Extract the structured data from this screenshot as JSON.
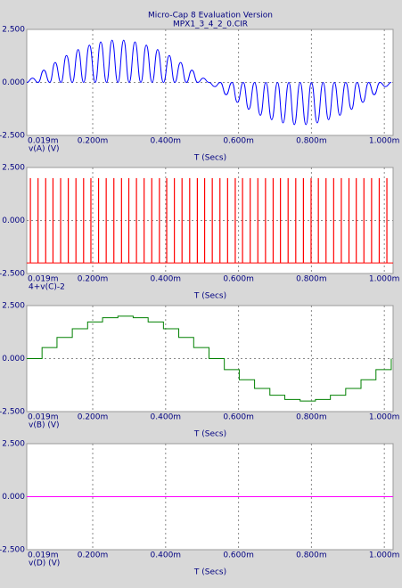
{
  "chart_data": [
    {
      "type": "line",
      "title": "Micro-Cap 8 Evaluation Version",
      "subtitle": "MPX1_3_4_2_0.CIR",
      "x_label": "T (Secs)",
      "y_label": "v(A) (V)",
      "xlim": [
        0.019,
        1.024
      ],
      "ylim": [
        -2.5,
        2.5
      ],
      "xticks": [
        {
          "value": 0.019,
          "label": "0.019m"
        },
        {
          "value": 0.2,
          "label": "0.200m"
        },
        {
          "value": 0.4,
          "label": "0.400m"
        },
        {
          "value": 0.6,
          "label": "0.600m"
        },
        {
          "value": 0.8,
          "label": "0.800m"
        },
        {
          "value": 1.0,
          "label": "1.000m"
        }
      ],
      "yticks": [
        {
          "value": 2.5,
          "label": "2.500"
        },
        {
          "value": 0,
          "label": "0.000"
        },
        {
          "value": -2.5,
          "label": "-2.500"
        }
      ],
      "grid": true,
      "series": [
        {
          "color": "#0000ff",
          "x": [
            0.019,
            0.035,
            0.05,
            0.066,
            0.082,
            0.097,
            0.113,
            0.128,
            0.144,
            0.16,
            0.175,
            0.191,
            0.207,
            0.222,
            0.238,
            0.253,
            0.269,
            0.285,
            0.3,
            0.316,
            0.332,
            0.347,
            0.363,
            0.378,
            0.394,
            0.41,
            0.425,
            0.441,
            0.457,
            0.472,
            0.488,
            0.503,
            0.519,
            0.535,
            0.55,
            0.566,
            0.582,
            0.597,
            0.613,
            0.628,
            0.644,
            0.66,
            0.675,
            0.691,
            0.707,
            0.722,
            0.738,
            0.753,
            0.769,
            0.785,
            0.8,
            0.816,
            0.832,
            0.847,
            0.863,
            0.878,
            0.894,
            0.91,
            0.925,
            0.941,
            0.957,
            0.972,
            0.988,
            1.003,
            1.019
          ],
          "values": [
            0,
            0.2,
            0,
            0.58,
            0,
            0.94,
            0,
            1.27,
            0,
            1.55,
            0,
            1.76,
            0,
            1.91,
            0,
            1.99,
            0,
            1.99,
            0,
            1.91,
            0,
            1.76,
            0,
            1.55,
            0,
            1.27,
            0,
            0.94,
            0,
            0.58,
            0,
            0.2,
            0,
            -0.2,
            0,
            -0.58,
            0,
            -0.94,
            0,
            -1.27,
            0,
            -1.55,
            0,
            -1.76,
            0,
            -1.91,
            0,
            -1.99,
            0,
            -1.99,
            0,
            -1.91,
            0,
            -1.76,
            0,
            -1.55,
            0,
            -1.27,
            0,
            -0.94,
            0,
            -0.58,
            0,
            -0.2,
            0
          ]
        }
      ]
    },
    {
      "type": "pulse",
      "x_label": "T (Secs)",
      "y_label": "4+v(C)-2",
      "xlim": [
        0.019,
        1.024
      ],
      "ylim": [
        -2.5,
        2.5
      ],
      "xticks": [
        {
          "value": 0.019,
          "label": "0.019m"
        },
        {
          "value": 0.2,
          "label": "0.200m"
        },
        {
          "value": 0.4,
          "label": "0.400m"
        },
        {
          "value": 0.6,
          "label": "0.600m"
        },
        {
          "value": 0.8,
          "label": "0.800m"
        },
        {
          "value": 1.0,
          "label": "1.000m"
        }
      ],
      "yticks": [
        {
          "value": 2.5,
          "label": "2.500"
        },
        {
          "value": 0,
          "label": "0.000"
        },
        {
          "value": -2.5,
          "label": "-2.500"
        }
      ],
      "grid": true,
      "series": [
        {
          "color": "#ff0000",
          "baseline": -2,
          "x": [
            0.029,
            0.05,
            0.071,
            0.091,
            0.112,
            0.133,
            0.154,
            0.175,
            0.195,
            0.216,
            0.237,
            0.258,
            0.279,
            0.299,
            0.32,
            0.341,
            0.362,
            0.383,
            0.403,
            0.424,
            0.445,
            0.466,
            0.487,
            0.507,
            0.528,
            0.549,
            0.57,
            0.591,
            0.611,
            0.632,
            0.653,
            0.674,
            0.695,
            0.715,
            0.736,
            0.757,
            0.778,
            0.799,
            0.819,
            0.84,
            0.861,
            0.882,
            0.903,
            0.923,
            0.944,
            0.965,
            0.986,
            1.007
          ],
          "values": [
            2,
            2,
            2,
            2,
            2,
            2,
            2,
            2,
            2,
            2,
            2,
            2,
            2,
            2,
            2,
            2,
            2,
            2,
            2,
            2,
            2,
            2,
            2,
            2,
            2,
            2,
            2,
            2,
            2,
            2,
            2,
            2,
            2,
            2,
            2,
            2,
            2,
            2,
            2,
            2,
            2,
            2,
            2,
            2,
            2,
            2,
            2,
            2
          ]
        }
      ]
    },
    {
      "type": "step",
      "x_label": "T (Secs)",
      "y_label": "v(B) (V)",
      "xlim": [
        0.019,
        1.024
      ],
      "ylim": [
        -2.5,
        2.5
      ],
      "xticks": [
        {
          "value": 0.019,
          "label": "0.019m"
        },
        {
          "value": 0.2,
          "label": "0.200m"
        },
        {
          "value": 0.4,
          "label": "0.400m"
        },
        {
          "value": 0.6,
          "label": "0.600m"
        },
        {
          "value": 0.8,
          "label": "0.800m"
        },
        {
          "value": 1.0,
          "label": "1.000m"
        }
      ],
      "yticks": [
        {
          "value": 2.5,
          "label": "2.500"
        },
        {
          "value": 0,
          "label": "0.000"
        },
        {
          "value": -2.5,
          "label": "-2.500"
        }
      ],
      "grid": true,
      "series": [
        {
          "color": "#008000",
          "x": [
            0.019,
            0.061,
            0.102,
            0.144,
            0.186,
            0.227,
            0.269,
            0.311,
            0.352,
            0.394,
            0.436,
            0.477,
            0.519,
            0.561,
            0.602,
            0.644,
            0.686,
            0.727,
            0.769,
            0.811,
            0.852,
            0.894,
            0.936,
            0.977,
            1.019
          ],
          "values": [
            0,
            0.52,
            1,
            1.41,
            1.73,
            1.93,
            2,
            1.93,
            1.73,
            1.41,
            1,
            0.52,
            0,
            -0.52,
            -1,
            -1.41,
            -1.73,
            -1.93,
            -2,
            -1.93,
            -1.73,
            -1.41,
            -1,
            -0.52,
            0
          ]
        }
      ]
    },
    {
      "type": "line",
      "x_label": "T (Secs)",
      "y_label": "v(D) (V)",
      "xlim": [
        0.019,
        1.024
      ],
      "ylim": [
        -2.5,
        2.5
      ],
      "xticks": [
        {
          "value": 0.019,
          "label": "0.019m"
        },
        {
          "value": 0.2,
          "label": "0.200m"
        },
        {
          "value": 0.4,
          "label": "0.400m"
        },
        {
          "value": 0.6,
          "label": "0.600m"
        },
        {
          "value": 0.8,
          "label": "0.800m"
        },
        {
          "value": 1.0,
          "label": "1.000m"
        }
      ],
      "yticks": [
        {
          "value": 2.5,
          "label": "2.500"
        },
        {
          "value": 0,
          "label": "0.000"
        },
        {
          "value": -2.5,
          "label": "-2.500"
        }
      ],
      "grid": true,
      "series": [
        {
          "color": "#ff00ff",
          "x": [
            0.019,
            1.024
          ],
          "values": [
            0,
            0
          ]
        }
      ]
    }
  ]
}
